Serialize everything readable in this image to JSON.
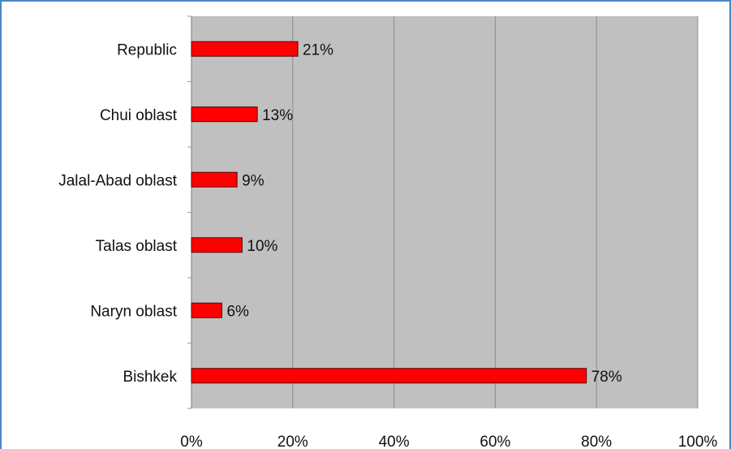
{
  "chart_data": {
    "type": "bar",
    "orientation": "horizontal",
    "categories": [
      "Republic",
      "Chui oblast",
      "Jalal-Abad oblast",
      "Talas oblast",
      "Naryn oblast",
      "Bishkek"
    ],
    "values": [
      21,
      13,
      9,
      10,
      6,
      78
    ],
    "value_labels": [
      "21%",
      "13%",
      "9%",
      "10%",
      "6%",
      "78%"
    ],
    "x_ticks": [
      "0%",
      "20%",
      "40%",
      "60%",
      "80%",
      "100%"
    ],
    "xlim": [
      0,
      100
    ],
    "grid": true,
    "legend": false
  },
  "colors": {
    "bar": "#ff0000",
    "bar_edge": "#5a0000",
    "plot_background": "#c0c0c0",
    "gridline": "#8c8c8c",
    "frame": "#4a86c8"
  }
}
